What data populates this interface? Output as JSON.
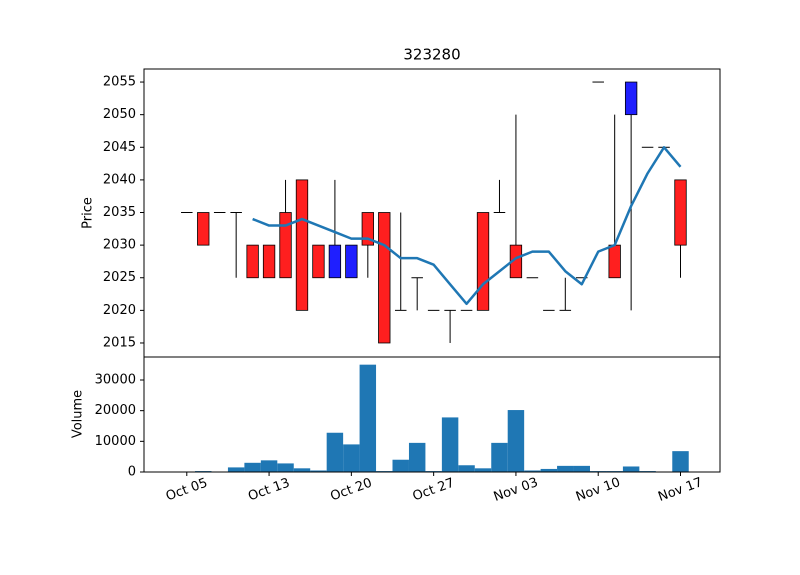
{
  "chart_data": [
    {
      "type": "candlestick",
      "title": "323280",
      "ylabel": "Price",
      "open": [
        2035,
        2030,
        2035,
        2035,
        2025,
        2025,
        2025,
        2020,
        2025,
        2030,
        2030,
        2030,
        2015,
        2020,
        2025,
        2020,
        2020,
        2020,
        2020,
        2035,
        2025,
        2025,
        2020,
        2020,
        2025,
        2055,
        2025,
        2055,
        2045,
        2045,
        2030
      ],
      "high": [
        2035,
        2035,
        2035,
        2035,
        2030,
        2030,
        2040,
        2040,
        2030,
        2040,
        2030,
        2035,
        2035,
        2035,
        2025,
        2020,
        2020,
        2020,
        2035,
        2040,
        2050,
        2025,
        2020,
        2025,
        2025,
        2055,
        2050,
        2055,
        2045,
        2045,
        2040
      ],
      "low": [
        2035,
        2030,
        2035,
        2025,
        2025,
        2025,
        2025,
        2020,
        2025,
        2025,
        2025,
        2025,
        2015,
        2020,
        2020,
        2020,
        2015,
        2020,
        2020,
        2035,
        2025,
        2025,
        2020,
        2020,
        2025,
        2055,
        2025,
        2020,
        2045,
        2045,
        2025
      ],
      "close": [
        2035,
        2035,
        2035,
        2035,
        2030,
        2030,
        2035,
        2040,
        2030,
        2025,
        2025,
        2035,
        2035,
        2020,
        2025,
        2020,
        2020,
        2020,
        2035,
        2035,
        2030,
        2025,
        2020,
        2020,
        2025,
        2055,
        2030,
        2050,
        2045,
        2045,
        2040
      ],
      "up_color": "#ff1f1f",
      "down_color": "#1f1fff",
      "ma": {
        "color": "#1f77b4",
        "values": [
          null,
          null,
          null,
          null,
          2034,
          2033,
          2033,
          2034,
          2033,
          2032,
          2031,
          2031,
          2030,
          2028,
          2028,
          2027,
          2024,
          2021,
          2024,
          2026,
          2028,
          2029,
          2029,
          2026,
          2024,
          2029,
          2030,
          2036,
          2041,
          2045,
          2042
        ]
      },
      "xlim": [
        -2.6,
        32.4
      ],
      "ylim": [
        2012.85,
        2057
      ],
      "yticks": [
        2015,
        2020,
        2025,
        2030,
        2035,
        2040,
        2045,
        2050,
        2055
      ]
    },
    {
      "type": "bar",
      "ylabel": "Volume",
      "color": "#1f77b4",
      "categories": [
        "Oct 05",
        null,
        null,
        null,
        null,
        "Oct 13",
        null,
        null,
        null,
        null,
        "Oct 20",
        null,
        null,
        null,
        null,
        "Oct 27",
        null,
        null,
        null,
        null,
        "Nov 03",
        null,
        null,
        null,
        null,
        "Nov 10",
        null,
        null,
        null,
        null,
        "Nov 17"
      ],
      "values": [
        0,
        300,
        0,
        1500,
        3000,
        3800,
        2800,
        1200,
        500,
        12800,
        9000,
        35000,
        300,
        4000,
        9500,
        300,
        17800,
        2200,
        1200,
        9500,
        20200,
        500,
        1000,
        2000,
        2000,
        300,
        300,
        1800,
        300,
        0,
        6800
      ],
      "xlim": [
        -2.6,
        32.4
      ],
      "ylim": [
        0,
        37500
      ],
      "yticks": [
        0,
        10000,
        20000,
        30000
      ]
    }
  ]
}
